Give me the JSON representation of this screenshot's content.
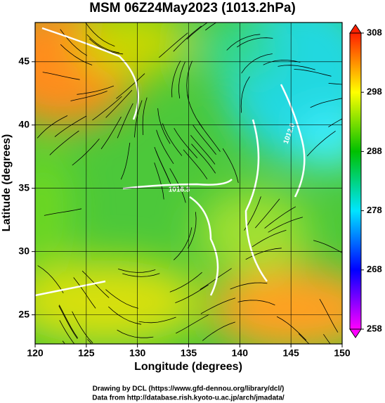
{
  "chart_data": {
    "type": "map",
    "title": "MSM 06Z24May2023 (1013.2hPa)",
    "xlabel": "Longitude (degrees)",
    "ylabel": "Latitude  (degrees)",
    "xlim": [
      120,
      150
    ],
    "ylim": [
      22.7,
      48.1
    ],
    "xticks": [
      120,
      125,
      130,
      135,
      140,
      145,
      150
    ],
    "yticks": [
      25,
      30,
      35,
      40,
      45
    ],
    "grid": true,
    "annotations": [
      "1016.3",
      "1012.0"
    ],
    "colorbar": {
      "lim": [
        258,
        308
      ],
      "ticks": [
        258,
        268,
        278,
        288,
        298,
        308
      ],
      "colors": [
        "#ff00ff",
        "#0000ff",
        "#00e5ff",
        "#00c000",
        "#ffff00",
        "#ff2000"
      ]
    },
    "credits": [
      "Drawing by DCL (https://www.gfd-dennou.org/library/dcl/)",
      "Data from http://database.rish.kyoto-u.ac.jp/arch/jmadata/"
    ]
  }
}
